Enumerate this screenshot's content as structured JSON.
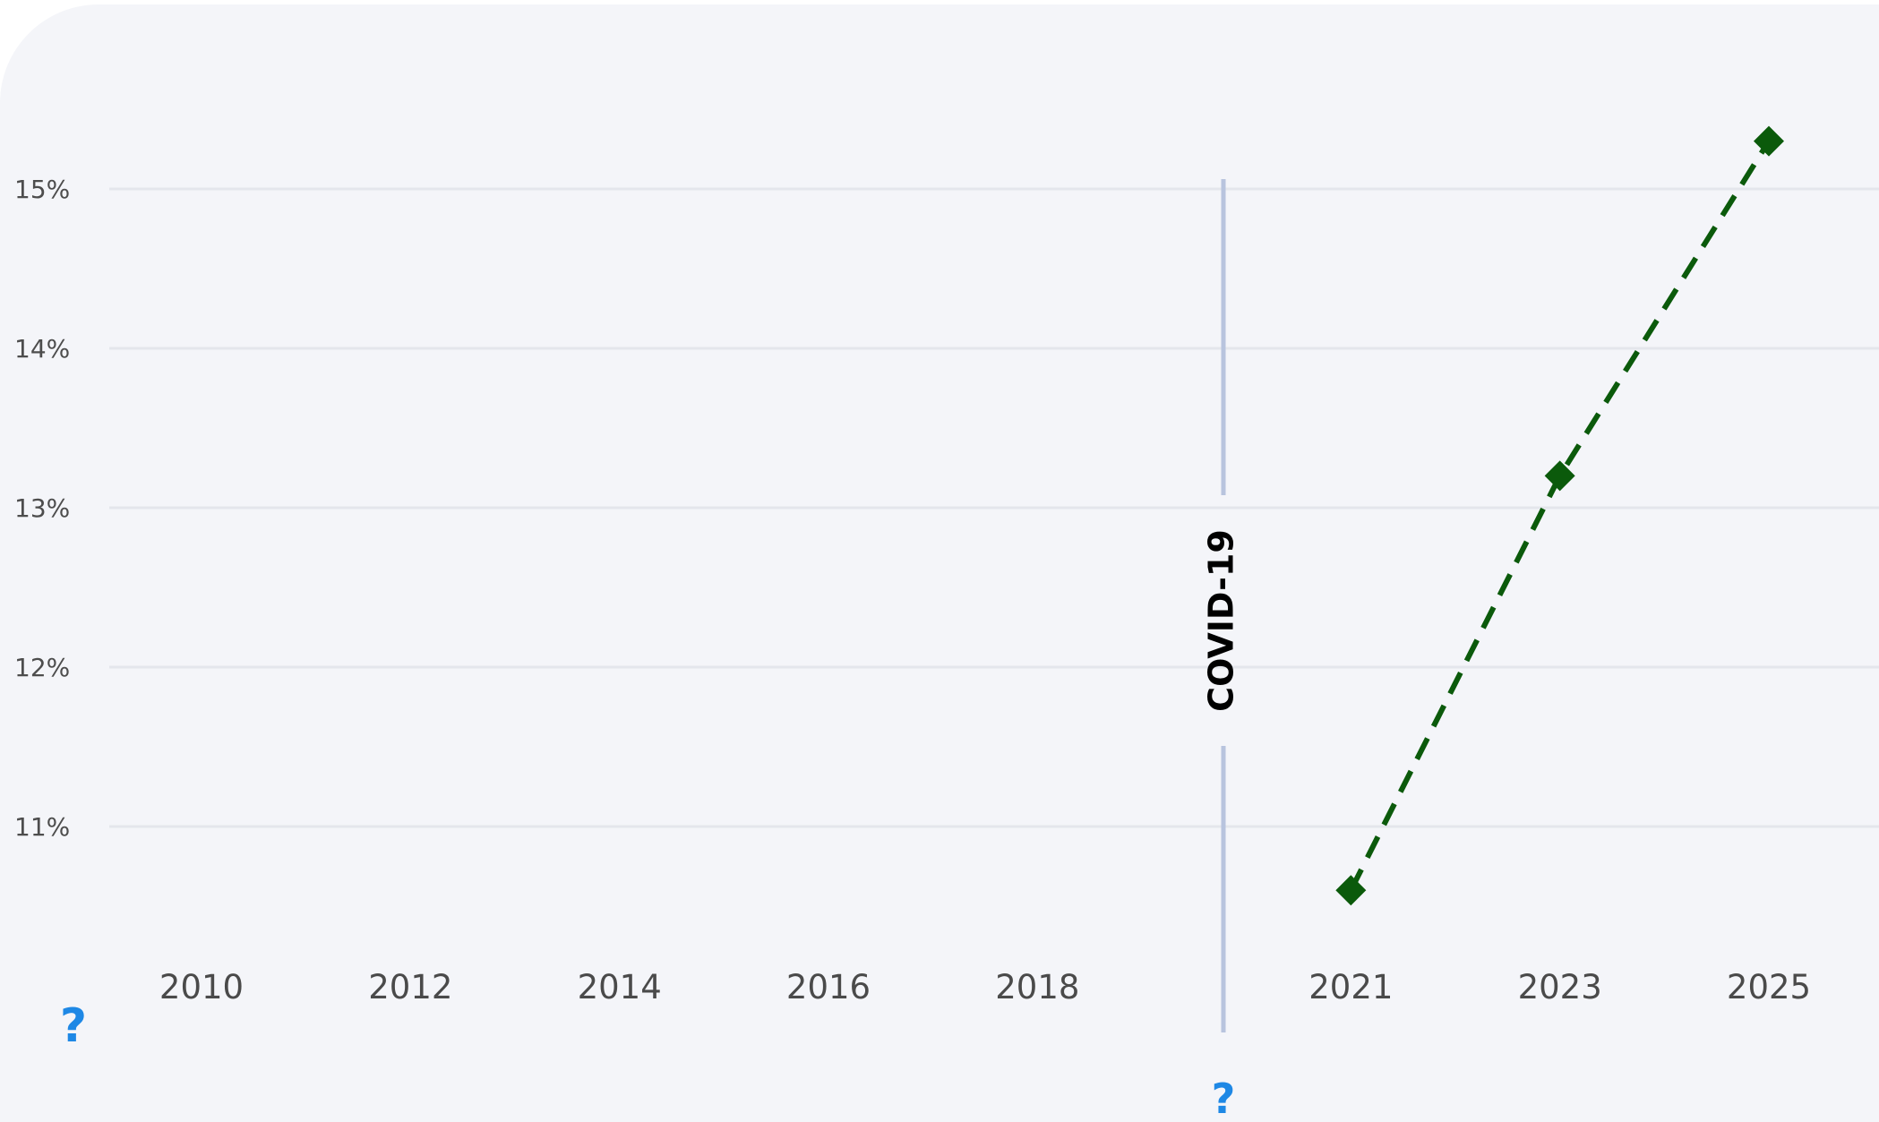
{
  "chart_data": {
    "type": "line",
    "title": "",
    "xlabel": "",
    "ylabel": "",
    "x_ticks": [
      "2010",
      "2012",
      "2014",
      "2016",
      "2018",
      "2021",
      "2023",
      "2025"
    ],
    "y_ticks": [
      "11%",
      "12%",
      "13%",
      "14%",
      "15%"
    ],
    "ylim": [
      10.2,
      15.5
    ],
    "grid": true,
    "series": [
      {
        "x": [
          "2021",
          "2023",
          "2025"
        ],
        "values": [
          10.6,
          13.2,
          15.3
        ],
        "color": "#0b5a0b",
        "line_style": "dashed",
        "marker": "diamond"
      }
    ],
    "annotations": [
      {
        "type": "vertical-line",
        "label": "COVID-19",
        "color": "#b8c4de"
      }
    ]
  },
  "help": {
    "left": "?",
    "bottom": "?",
    "icon": "question-mark-icon",
    "color": "#1e88e5"
  }
}
